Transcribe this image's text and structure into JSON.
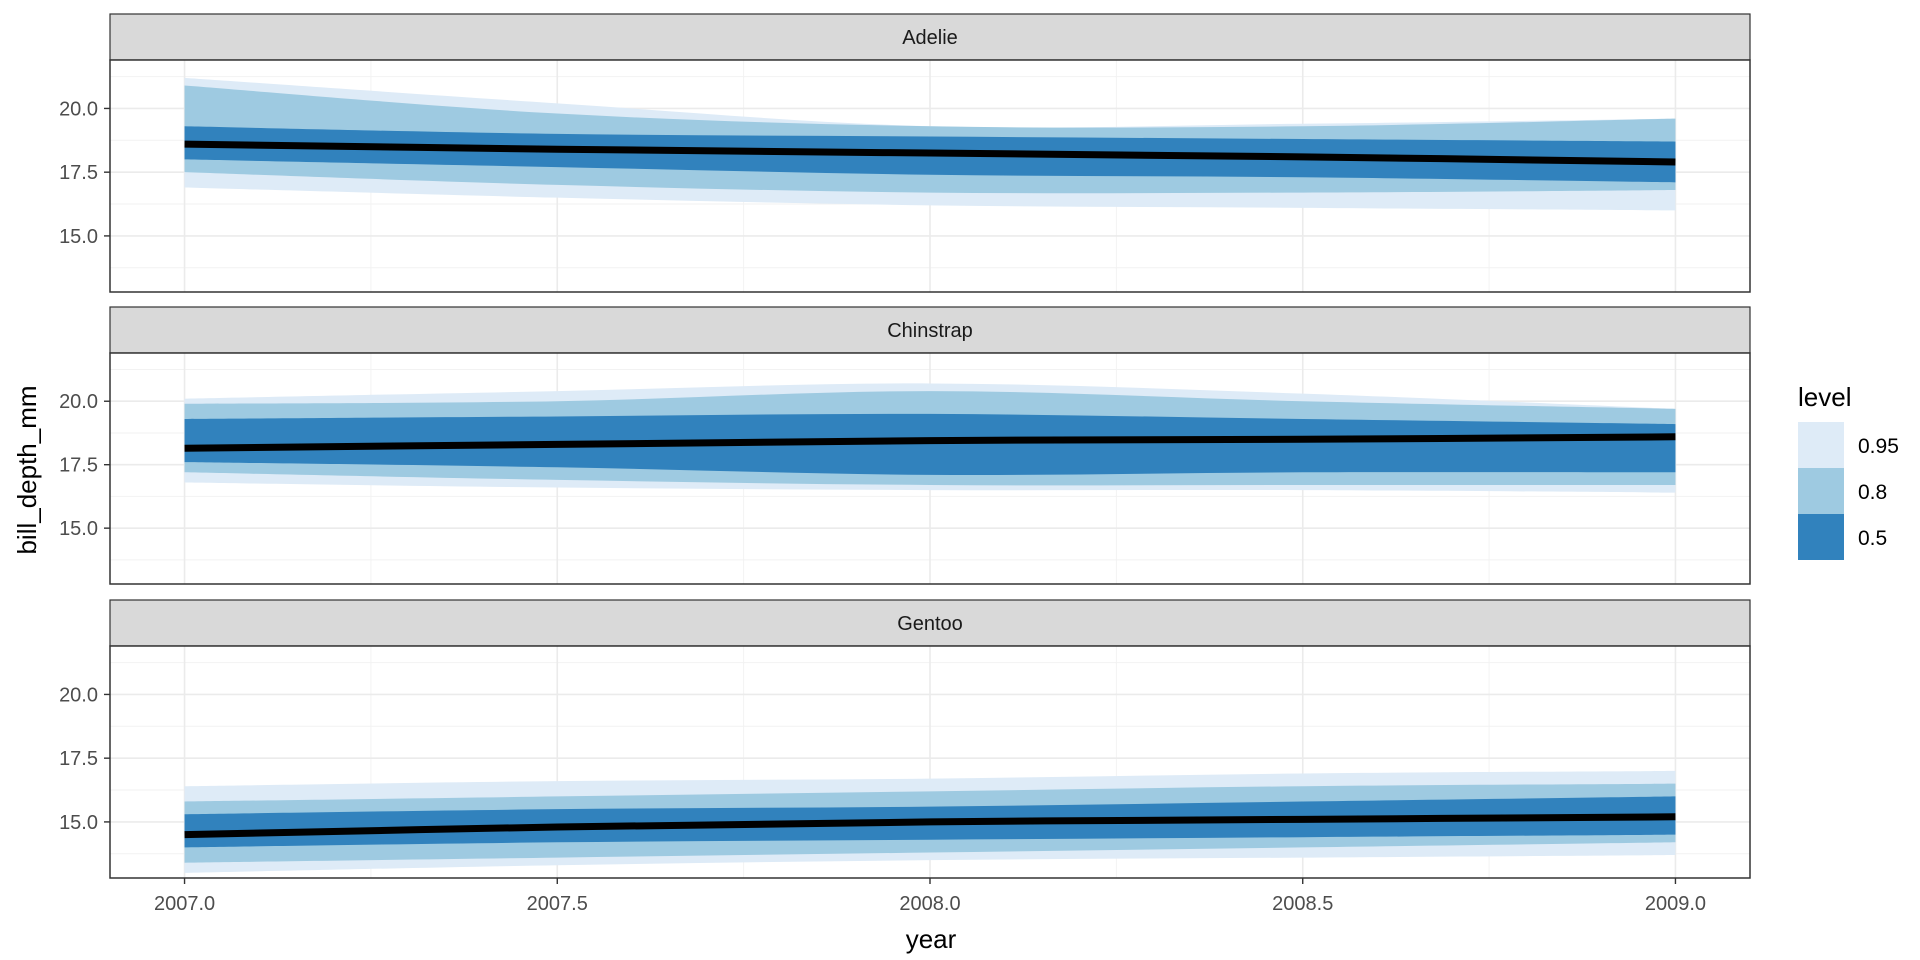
{
  "chart_data": {
    "type": "area",
    "xlabel": "year",
    "ylabel": "bill_depth_mm",
    "xlim": [
      2006.9,
      2009.1
    ],
    "ylim": [
      12.8,
      21.9
    ],
    "x_ticks": [
      2007.0,
      2007.5,
      2008.0,
      2008.5,
      2009.0
    ],
    "x_tick_labels": [
      "2007.0",
      "2007.5",
      "2008.0",
      "2008.5",
      "2009.0"
    ],
    "y_ticks": [
      15.0,
      17.5,
      20.0
    ],
    "y_tick_labels": [
      "15.0",
      "17.5",
      "20.0"
    ],
    "grid": true,
    "legend": {
      "title": "level",
      "position": "right",
      "entries": [
        {
          "label": "0.95",
          "color": "#deebf7"
        },
        {
          "label": "0.8",
          "color": "#9ecae1"
        },
        {
          "label": "0.5",
          "color": "#3182bd"
        }
      ]
    },
    "line_color": "#000000",
    "panels": [
      {
        "name": "Adelie",
        "x": [
          2007.0,
          2007.5,
          2008.0,
          2008.5,
          2009.0
        ],
        "median": [
          18.6,
          18.4,
          18.25,
          18.1,
          17.9
        ],
        "bands": {
          "0.95": {
            "lower": [
              16.9,
              16.5,
              16.2,
              16.1,
              16.0
            ],
            "upper": [
              21.2,
              20.2,
              19.3,
              19.4,
              19.6
            ]
          },
          "0.8": {
            "lower": [
              17.5,
              17.0,
              16.7,
              16.7,
              16.8
            ],
            "upper": [
              20.9,
              19.8,
              19.3,
              19.3,
              19.6
            ]
          },
          "0.5": {
            "lower": [
              18.0,
              17.7,
              17.4,
              17.3,
              17.1
            ],
            "upper": [
              19.3,
              19.0,
              18.9,
              18.8,
              18.7
            ]
          }
        }
      },
      {
        "name": "Chinstrap",
        "x": [
          2007.0,
          2007.5,
          2008.0,
          2008.5,
          2009.0
        ],
        "median": [
          18.15,
          18.3,
          18.45,
          18.5,
          18.6
        ],
        "bands": {
          "0.95": {
            "lower": [
              16.8,
              16.6,
              16.5,
              16.5,
              16.4
            ],
            "upper": [
              20.1,
              20.4,
              20.7,
              20.3,
              19.7
            ]
          },
          "0.8": {
            "lower": [
              17.2,
              16.9,
              16.7,
              16.7,
              16.7
            ],
            "upper": [
              19.9,
              20.0,
              20.4,
              20.0,
              19.7
            ]
          },
          "0.5": {
            "lower": [
              17.6,
              17.4,
              17.1,
              17.2,
              17.2
            ],
            "upper": [
              19.3,
              19.4,
              19.5,
              19.3,
              19.1
            ]
          }
        }
      },
      {
        "name": "Gentoo",
        "x": [
          2007.0,
          2007.5,
          2008.0,
          2008.5,
          2009.0
        ],
        "median": [
          14.5,
          14.8,
          15.0,
          15.1,
          15.2
        ],
        "bands": {
          "0.95": {
            "lower": [
              13.0,
              13.3,
              13.5,
              13.6,
              13.7
            ],
            "upper": [
              16.4,
              16.6,
              16.7,
              16.9,
              17.0
            ]
          },
          "0.8": {
            "lower": [
              13.4,
              13.6,
              13.8,
              14.0,
              14.2
            ],
            "upper": [
              15.8,
              16.0,
              16.2,
              16.4,
              16.5
            ]
          },
          "0.5": {
            "lower": [
              14.0,
              14.2,
              14.3,
              14.4,
              14.5
            ],
            "upper": [
              15.3,
              15.5,
              15.6,
              15.8,
              16.0
            ]
          }
        }
      }
    ]
  }
}
